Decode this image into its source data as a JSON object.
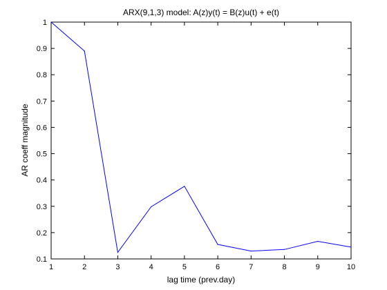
{
  "chart_data": {
    "type": "line",
    "title": "ARX(9,1,3) model:  A(z)y(t) = B(z)u(t) + e(t)",
    "xlabel": "lag time (prev.day)",
    "ylabel": "AR coeff magnitude",
    "xlim": [
      1,
      10
    ],
    "ylim": [
      0.1,
      1
    ],
    "xticks": [
      "1",
      "2",
      "3",
      "4",
      "5",
      "6",
      "7",
      "8",
      "9",
      "10"
    ],
    "yticks": [
      "0.1",
      "0.2",
      "0.3",
      "0.4",
      "0.5",
      "0.6",
      "0.7",
      "0.8",
      "0.9",
      "1"
    ],
    "grid": false,
    "series": [
      {
        "color": "#0000ff",
        "x": [
          1,
          2,
          3,
          4,
          5,
          6,
          7,
          8,
          9,
          10
        ],
        "y": [
          1.0,
          0.89,
          0.125,
          0.298,
          0.376,
          0.155,
          0.13,
          0.136,
          0.167,
          0.145
        ]
      }
    ]
  }
}
